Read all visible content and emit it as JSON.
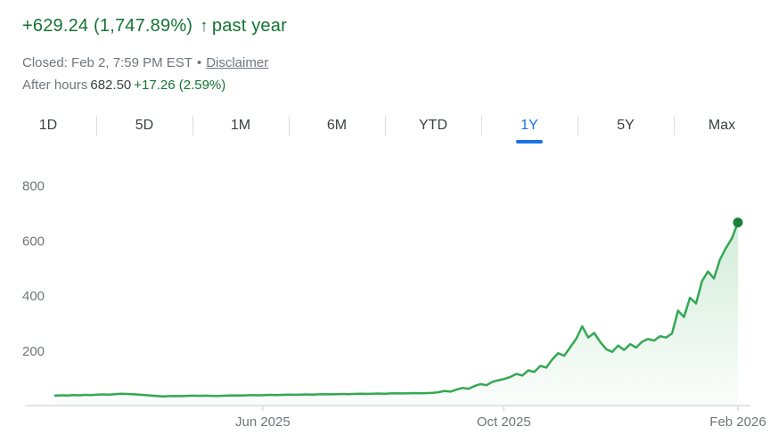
{
  "header": {
    "change": "+629.24 (1,747.89%)",
    "arrow": "↑",
    "period": "past year",
    "closed": "Closed: Feb 2, 7:59 PM EST",
    "bullet": "•",
    "disclaimer_label": "Disclaimer",
    "after_hours_label": "After hours",
    "after_hours_price": "682.50",
    "after_hours_change": "+17.26 (2.59%)"
  },
  "tabs": [
    {
      "label": "1D",
      "active": false
    },
    {
      "label": "5D",
      "active": false
    },
    {
      "label": "1M",
      "active": false
    },
    {
      "label": "6M",
      "active": false
    },
    {
      "label": "YTD",
      "active": false
    },
    {
      "label": "1Y",
      "active": true
    },
    {
      "label": "5Y",
      "active": false
    },
    {
      "label": "Max",
      "active": false
    }
  ],
  "chart_data": {
    "type": "line",
    "title": "Stock price, past year",
    "xlabel": "",
    "ylabel": "",
    "ylim": [
      0,
      800
    ],
    "y_ticks": [
      200,
      400,
      600,
      800
    ],
    "x_ticks": [
      {
        "label": "Jun 2025",
        "pos": 0.304
      },
      {
        "label": "Oct 2025",
        "pos": 0.657
      },
      {
        "label": "Feb 2026",
        "pos": 1.0
      }
    ],
    "legend": "none",
    "grid": false,
    "line_color": "#34a853",
    "dot_color": "#188038",
    "fill_top": "rgba(52,168,83,0.22)",
    "fill_bottom": "rgba(52,168,83,0.02)",
    "start_value": 36.0,
    "end_value": 665.24,
    "series": [
      {
        "name": "price",
        "values": [
          36.0,
          37.2,
          36.5,
          38.0,
          37.4,
          38.8,
          38.2,
          39.6,
          40.5,
          39.8,
          41.2,
          42.6,
          42.0,
          41.0,
          39.5,
          37.8,
          36.2,
          34.5,
          33.4,
          34.2,
          35.0,
          34.3,
          35.2,
          36.0,
          35.3,
          36.1,
          35.4,
          34.6,
          35.5,
          36.3,
          37.0,
          36.4,
          37.2,
          38.0,
          37.3,
          38.1,
          38.9,
          38.2,
          39.0,
          39.8,
          39.1,
          39.9,
          40.6,
          39.9,
          40.7,
          41.4,
          40.8,
          41.5,
          42.2,
          41.6,
          42.3,
          43.0,
          42.4,
          43.1,
          43.8,
          43.2,
          43.9,
          44.6,
          44.0,
          44.7,
          45.3,
          44.6,
          45.5,
          46.2,
          48.5,
          53.0,
          50.5,
          58.0,
          64.0,
          61.0,
          71.0,
          78.0,
          74.0,
          86.0,
          92.0,
          97.0,
          104,
          115,
          109,
          128,
          122,
          144,
          138,
          168,
          190,
          181,
          212,
          243,
          288,
          247,
          264,
          231,
          205,
          195,
          218,
          202,
          223,
          211,
          232,
          242,
          236,
          252,
          247,
          262,
          345,
          322,
          392,
          371,
          452,
          487,
          462,
          530,
          573,
          608,
          665.24
        ]
      }
    ]
  }
}
